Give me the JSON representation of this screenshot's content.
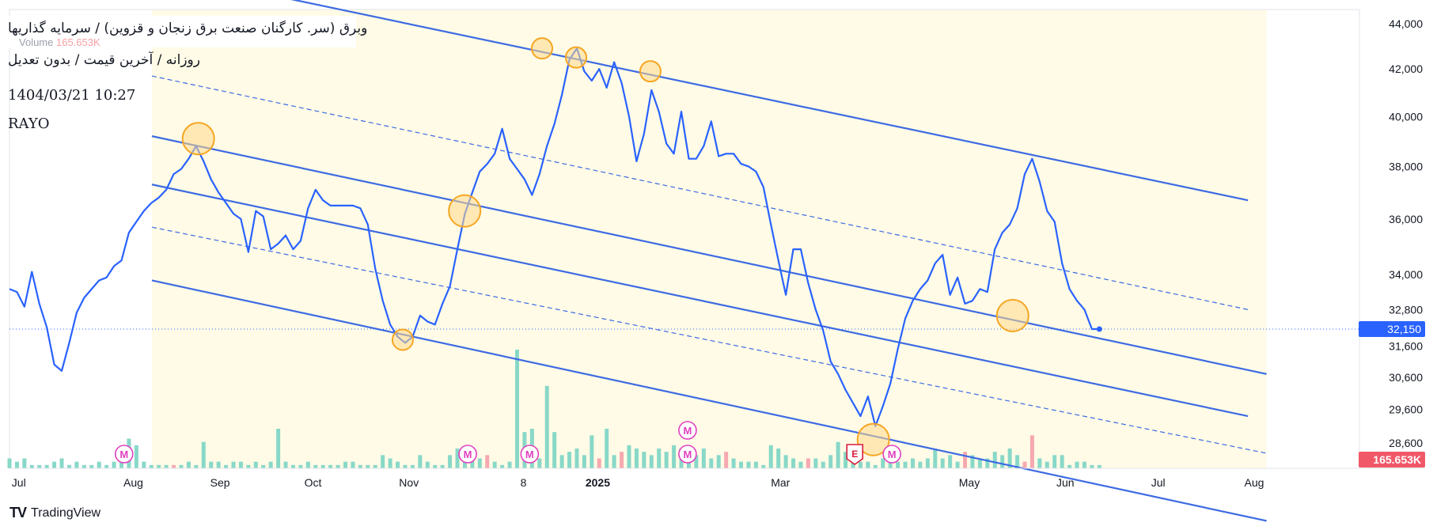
{
  "legend": {
    "title": "وبرق (سر. كارگنان صنعت برق زنجان و قزوين) / سرمايه گذاريها",
    "subtitle": "روزانه / آخرين قيمت / بدون تعديل",
    "timestamp": "1404/03/21 10:27",
    "brand": "RAYO",
    "volume_label": "Volume",
    "volume_value": "165.653K"
  },
  "footer": {
    "logo_text": "TV",
    "name": "TradingView"
  },
  "colors": {
    "price_line": "#2962ff",
    "channel_line": "#3d6be3",
    "channel_fill": "#fffbe6",
    "volume_up": "#88d8c8",
    "volume_down": "#f6a8b0",
    "marker_fill": "#ffd88a",
    "marker_stroke": "#f5a623",
    "last_price_bg": "#2962ff",
    "volume_badge_bg": "#f05868",
    "event_m": "#e040c0",
    "event_e": "#d81b3c"
  },
  "chart_data": {
    "type": "line",
    "y_axis_scale": "log",
    "y_ticks": [
      "44,000",
      "42,000",
      "40,000",
      "38,000",
      "36,000",
      "34,000",
      "32,800",
      "31,600",
      "30,600",
      "29,600",
      "28,600"
    ],
    "y_tick_values": [
      44000,
      42000,
      40000,
      38000,
      36000,
      34000,
      32800,
      31600,
      30600,
      29600,
      28600
    ],
    "x_ticks": [
      "Jul",
      "Aug",
      "Sep",
      "Oct",
      "Nov",
      "8",
      "2025",
      "Mar",
      "May",
      "Jun",
      "Jul",
      "Aug"
    ],
    "x_tick_bold": [
      false,
      false,
      false,
      false,
      false,
      false,
      true,
      false,
      false,
      false,
      false,
      false
    ],
    "last_price": 32150,
    "last_price_label": "32,150",
    "volume_badge": "165.653K",
    "series": [
      {
        "values": [
          33500,
          33400,
          32900,
          34100,
          33000,
          32200,
          31000,
          30800,
          31700,
          32700,
          33200,
          33500,
          33800,
          33900,
          34300,
          34500,
          35500,
          35900,
          36300,
          36600,
          36800,
          37100,
          37700,
          37900,
          38300,
          38800,
          38200,
          37500,
          37000,
          36600,
          36200,
          36000,
          34800,
          36300,
          36100,
          34900,
          35100,
          35400,
          34900,
          35200,
          36400,
          37100,
          36700,
          36500,
          36500,
          36500,
          36500,
          36400,
          35800,
          34200,
          33100,
          32300,
          31900,
          31700,
          31900,
          32600,
          32400,
          32300,
          33000,
          33600,
          34900,
          36200,
          37000,
          37800,
          38100,
          38500,
          39500,
          38300,
          37900,
          37500,
          36900,
          37700,
          38800,
          39700,
          40900,
          42400,
          42900,
          41900,
          41500,
          42000,
          41200,
          42300,
          41400,
          40000,
          38200,
          39300,
          41100,
          40200,
          38900,
          38500,
          40200,
          38300,
          38300,
          38800,
          39800,
          38400,
          38500,
          38500,
          38100,
          38000,
          37800,
          37200,
          35800,
          34500,
          33300,
          34900,
          34900,
          33700,
          32800,
          32100,
          31100,
          30700,
          30200,
          29800,
          29400,
          30000,
          29100,
          29700,
          30400,
          31500,
          32500,
          33100,
          33500,
          33800,
          34400,
          34700,
          33300,
          33900,
          33000,
          33100,
          33500,
          33400,
          34900,
          35500,
          35800,
          36400,
          37700,
          38300,
          37400,
          36300,
          35900,
          34400,
          33500,
          33100,
          32800,
          32150,
          32150
        ]
      }
    ],
    "channels": [
      {
        "x_dates": [
          "2024-08-10",
          "2025-07-30"
        ],
        "upper": [
          46500,
          36700
        ],
        "mid": [
          41700,
          32800
        ],
        "lower": [
          37300,
          29400
        ]
      },
      {
        "x_dates": [
          "2024-08-10",
          "2025-08-05"
        ],
        "upper": [
          39200,
          30700
        ],
        "mid": [
          35700,
          28300
        ],
        "lower": [
          33800,
          26400
        ]
      }
    ],
    "volume": [
      3,
      2,
      3,
      1,
      1,
      1,
      2,
      3,
      1,
      2,
      1,
      1,
      2,
      1,
      2,
      2,
      9,
      7,
      2,
      1,
      1,
      1,
      1,
      1,
      2,
      1,
      8,
      2,
      2,
      1,
      2,
      2,
      1,
      2,
      1,
      2,
      12,
      2,
      1,
      1,
      2,
      1,
      1,
      1,
      1,
      2,
      2,
      1,
      1,
      1,
      4,
      3,
      2,
      1,
      1,
      4,
      2,
      1,
      1,
      4,
      6,
      2,
      5,
      3,
      4,
      2,
      1,
      2,
      36,
      11,
      12,
      3,
      25,
      11,
      4,
      5,
      6,
      4,
      10,
      3,
      12,
      4,
      5,
      7,
      6,
      5,
      4,
      6,
      5,
      7,
      6,
      4,
      4,
      6,
      3,
      4,
      5,
      3,
      2,
      2,
      2,
      1,
      7,
      6,
      4,
      3,
      2,
      3,
      3,
      2,
      4,
      8,
      5,
      3,
      2,
      2,
      1,
      3,
      2,
      2,
      2,
      3,
      2,
      3,
      6,
      3,
      4,
      2,
      5,
      4,
      3,
      3,
      5,
      4,
      6,
      4,
      2,
      10,
      3,
      2,
      4,
      4,
      1,
      2,
      2,
      1,
      1
    ],
    "volume_down_indices": [
      22,
      64,
      79,
      82,
      96,
      107,
      128,
      136,
      137
    ],
    "events": [
      {
        "label": "M",
        "date": "2024-08-01",
        "row": 0
      },
      {
        "label": "M",
        "date": "2024-11-20",
        "row": 0
      },
      {
        "label": "M",
        "date": "2024-12-10",
        "row": 0
      },
      {
        "label": "M",
        "date": "2025-01-30",
        "row": 0
      },
      {
        "label": "M",
        "date": "2025-01-30",
        "row": 1
      },
      {
        "label": "E",
        "date": "2025-03-25",
        "row": 0
      },
      {
        "label": "M",
        "date": "2025-04-06",
        "row": 0
      }
    ],
    "highlights": [
      {
        "date": "2024-08-25",
        "value": 39100,
        "size": "large"
      },
      {
        "date": "2024-10-30",
        "value": 31800,
        "size": "small"
      },
      {
        "date": "2024-11-19",
        "value": 36300,
        "size": "large"
      },
      {
        "date": "2024-12-14",
        "value": 42900,
        "size": "small"
      },
      {
        "date": "2024-12-25",
        "value": 42500,
        "size": "small"
      },
      {
        "date": "2025-01-18",
        "value": 41900,
        "size": "small"
      },
      {
        "date": "2025-03-31",
        "value": 28700,
        "size": "large"
      },
      {
        "date": "2025-05-15",
        "value": 32600,
        "size": "large"
      }
    ]
  }
}
